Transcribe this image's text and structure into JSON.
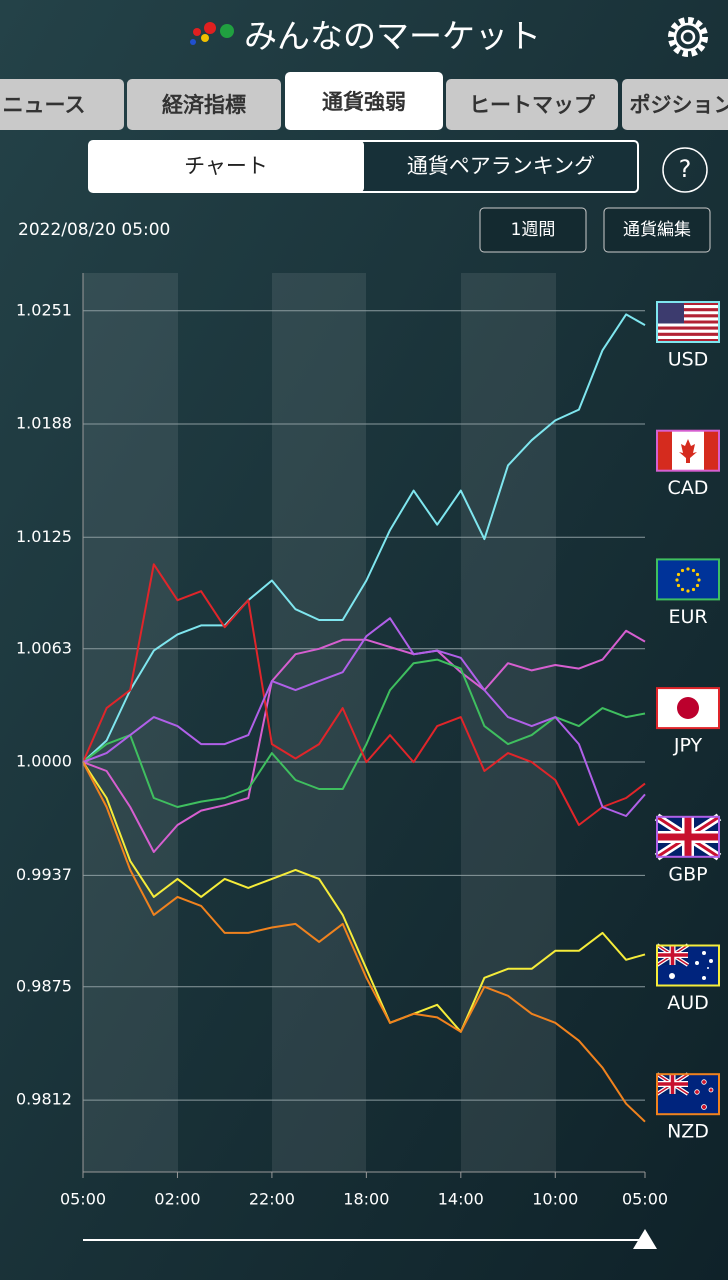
{
  "header": {
    "title": "みんなのマーケット"
  },
  "tabs": [
    "ニュース",
    "経済指標",
    "通貨強弱",
    "ヒートマップ",
    "ポジション"
  ],
  "segments": [
    "チャート",
    "通貨ペアランキング"
  ],
  "help": "?",
  "timestamp": "2022/08/20 05:00",
  "buttons": [
    "1週間",
    "通貨編集"
  ],
  "chart_data": {
    "type": "line",
    "x": [
      0,
      5,
      10,
      15,
      20,
      25,
      30,
      35,
      40,
      45,
      50,
      55,
      60,
      65,
      70,
      75,
      80,
      85,
      90,
      95,
      100,
      105,
      110,
      115,
      119
    ],
    "xlim": [
      0,
      119
    ],
    "xticks": [
      {
        "value": 0,
        "label": "05:00"
      },
      {
        "value": 20,
        "label": "02:00"
      },
      {
        "value": 40,
        "label": "22:00"
      },
      {
        "value": 60,
        "label": "18:00"
      },
      {
        "value": 80,
        "label": "14:00"
      },
      {
        "value": 100,
        "label": "10:00"
      },
      {
        "value": 119,
        "label": "05:00"
      }
    ],
    "ylim": [
      0.9772,
      1.0272
    ],
    "yticks": [
      1.0251,
      1.0188,
      1.0125,
      1.0063,
      {
        "value": 1,
        "label": "1.0000"
      },
      0.9937,
      0.9875,
      0.9812
    ],
    "grid": true,
    "series": [
      {
        "name": "USD",
        "color": "#7fe6ef",
        "values": [
          1.0,
          1.0012,
          1.004,
          1.0062,
          1.0071,
          1.0076,
          1.0076,
          1.009,
          1.0101,
          1.0085,
          1.0079,
          1.0079,
          1.0101,
          1.0129,
          1.0151,
          1.0132,
          1.0151,
          1.0124,
          1.0165,
          1.0179,
          1.019,
          1.0196,
          1.0229,
          1.0249,
          1.0243
        ]
      },
      {
        "name": "CAD",
        "color": "#d65fd0",
        "values": [
          1.0,
          0.9995,
          0.9975,
          0.995,
          0.9965,
          0.9973,
          0.9976,
          0.998,
          1.0045,
          1.006,
          1.0063,
          1.0068,
          1.0068,
          1.0064,
          1.006,
          1.0062,
          1.005,
          1.004,
          1.0055,
          1.0051,
          1.0054,
          1.0052,
          1.0057,
          1.0073,
          1.0067
        ]
      },
      {
        "name": "EUR",
        "color": "#3fbf5f",
        "values": [
          1.0,
          1.001,
          1.0015,
          0.998,
          0.9975,
          0.9978,
          0.998,
          0.9985,
          1.0005,
          0.999,
          0.9985,
          0.9985,
          1.001,
          1.004,
          1.0055,
          1.0057,
          1.0052,
          1.002,
          1.001,
          1.0015,
          1.0025,
          1.002,
          1.003,
          1.0025,
          1.0027
        ]
      },
      {
        "name": "JPY",
        "color": "#e0252a",
        "values": [
          1.0,
          1.003,
          1.004,
          1.011,
          1.009,
          1.0095,
          1.0075,
          1.009,
          1.001,
          1.0002,
          1.001,
          1.003,
          1.0,
          1.0015,
          1.0,
          1.002,
          1.0025,
          0.9995,
          1.0005,
          1.0,
          0.999,
          0.9965,
          0.9975,
          0.998,
          0.9988
        ]
      },
      {
        "name": "GBP",
        "color": "#b060e8",
        "values": [
          1.0,
          1.0005,
          1.0015,
          1.0025,
          1.002,
          1.001,
          1.001,
          1.0015,
          1.0045,
          1.004,
          1.0045,
          1.005,
          1.007,
          1.008,
          1.006,
          1.0062,
          1.0058,
          1.004,
          1.0025,
          1.002,
          1.0025,
          1.001,
          0.9975,
          0.997,
          0.9982
        ]
      },
      {
        "name": "AUD",
        "color": "#f5ec3a",
        "values": [
          1.0,
          0.998,
          0.9945,
          0.9925,
          0.9935,
          0.9925,
          0.9935,
          0.993,
          0.9935,
          0.994,
          0.9935,
          0.9915,
          0.9885,
          0.9855,
          0.986,
          0.9865,
          0.985,
          0.988,
          0.9885,
          0.9885,
          0.9895,
          0.9895,
          0.9905,
          0.989,
          0.9893
        ]
      },
      {
        "name": "NZD",
        "color": "#f0821e",
        "values": [
          1.0,
          0.9975,
          0.994,
          0.9915,
          0.9925,
          0.992,
          0.9905,
          0.9905,
          0.9908,
          0.991,
          0.99,
          0.991,
          0.988,
          0.9855,
          0.986,
          0.9858,
          0.985,
          0.9875,
          0.987,
          0.986,
          0.9855,
          0.9845,
          0.983,
          0.981,
          0.98
        ]
      }
    ]
  }
}
